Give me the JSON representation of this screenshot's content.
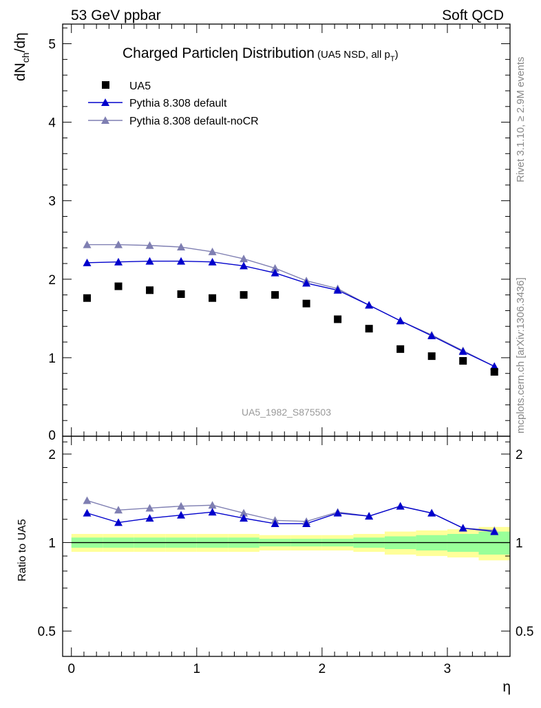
{
  "header": {
    "left": "53 GeV ppbar",
    "right": "Soft QCD"
  },
  "side_labels": {
    "rivet": "Rivet 3.1.10, ≥ 2.9M events",
    "mcplots": "mcplots.cern.ch [arXiv:1306.3436]"
  },
  "colors": {
    "data": "#000000",
    "default": "#0000cc",
    "default_noCR": "#7f7fb2",
    "band_inner": "#99ff99",
    "band_outer": "#ffff99"
  },
  "chart_data": [
    {
      "type": "scatter",
      "title": "Charged Particleη Distribution",
      "title_note": "(UA5 NSD, all p",
      "title_note_sub": "T",
      "title_note_end": ")",
      "ylabel": "dN",
      "ylabel_sub": "ch",
      "ylabel_end": "/dη",
      "watermark": "UA5_1982_S875503",
      "xlim": [
        -0.07,
        3.5
      ],
      "ylim": [
        0,
        5.25
      ],
      "yticks": [
        1,
        2,
        3,
        4,
        5
      ],
      "yticklabels": [
        "1",
        "2",
        "3",
        "4",
        "5"
      ],
      "ybottom_label": "0",
      "legend_position": "top-left",
      "series": [
        {
          "name": "UA5",
          "marker": "square",
          "x": [
            0.125,
            0.375,
            0.625,
            0.875,
            1.125,
            1.375,
            1.625,
            1.875,
            2.125,
            2.375,
            2.625,
            2.875,
            3.125,
            3.375
          ],
          "y": [
            1.76,
            1.91,
            1.86,
            1.81,
            1.76,
            1.8,
            1.8,
            1.69,
            1.49,
            1.37,
            1.11,
            1.02,
            0.96,
            0.82
          ]
        },
        {
          "name": "Pythia 8.308 default",
          "marker": "triangle",
          "x": [
            0.125,
            0.375,
            0.625,
            0.875,
            1.125,
            1.375,
            1.625,
            1.875,
            2.125,
            2.375,
            2.625,
            2.875,
            3.125,
            3.375
          ],
          "y": [
            2.21,
            2.22,
            2.23,
            2.23,
            2.22,
            2.17,
            2.08,
            1.95,
            1.86,
            1.67,
            1.47,
            1.28,
            1.08,
            0.89
          ]
        },
        {
          "name": "Pythia 8.308 default-noCR",
          "marker": "triangle",
          "x": [
            0.125,
            0.375,
            0.625,
            0.875,
            1.125,
            1.375,
            1.625,
            1.875,
            2.125,
            2.375,
            2.625,
            2.875,
            3.125,
            3.375
          ],
          "y": [
            2.44,
            2.44,
            2.43,
            2.41,
            2.35,
            2.26,
            2.14,
            1.98,
            1.88,
            1.67,
            1.47,
            1.29,
            1.09,
            0.89
          ]
        }
      ]
    },
    {
      "type": "scatter",
      "ylabel": "Ratio to UA5",
      "xlabel": "η",
      "xlim": [
        -0.07,
        3.5
      ],
      "ylim": [
        0.41,
        2.3
      ],
      "log_y": true,
      "yticks": [
        0.5,
        1,
        2
      ],
      "yticklabels": [
        "0.5",
        "1",
        "2"
      ],
      "xticks": [
        0,
        1,
        2,
        3
      ],
      "xticklabels": [
        "0",
        "1",
        "2",
        "3"
      ],
      "bands": {
        "x_edges": [
          0,
          0.25,
          0.5,
          0.75,
          1.0,
          1.25,
          1.5,
          1.75,
          2.0,
          2.25,
          2.5,
          2.75,
          3.0,
          3.25,
          3.5
        ],
        "inner_half_width": [
          0.04,
          0.04,
          0.04,
          0.04,
          0.04,
          0.04,
          0.03,
          0.03,
          0.03,
          0.04,
          0.05,
          0.06,
          0.07,
          0.09
        ],
        "outer_half_width": [
          0.07,
          0.07,
          0.07,
          0.07,
          0.07,
          0.07,
          0.06,
          0.06,
          0.06,
          0.07,
          0.09,
          0.1,
          0.11,
          0.13
        ]
      },
      "series": [
        {
          "name": "Pythia 8.308 default",
          "x": [
            0.125,
            0.375,
            0.625,
            0.875,
            1.125,
            1.375,
            1.625,
            1.875,
            2.125,
            2.375,
            2.625,
            2.875,
            3.125,
            3.375
          ],
          "y": [
            1.26,
            1.17,
            1.21,
            1.24,
            1.27,
            1.21,
            1.16,
            1.16,
            1.26,
            1.23,
            1.33,
            1.26,
            1.12,
            1.09
          ]
        },
        {
          "name": "Pythia 8.308 default-noCR",
          "x": [
            0.125,
            0.375,
            0.625,
            0.875,
            1.125,
            1.375,
            1.625,
            1.875,
            2.125,
            2.375,
            2.625,
            2.875,
            3.125,
            3.375
          ],
          "y": [
            1.39,
            1.29,
            1.31,
            1.33,
            1.34,
            1.26,
            1.19,
            1.18,
            1.27,
            1.23,
            1.33,
            1.26,
            1.12,
            1.1
          ]
        }
      ]
    }
  ]
}
